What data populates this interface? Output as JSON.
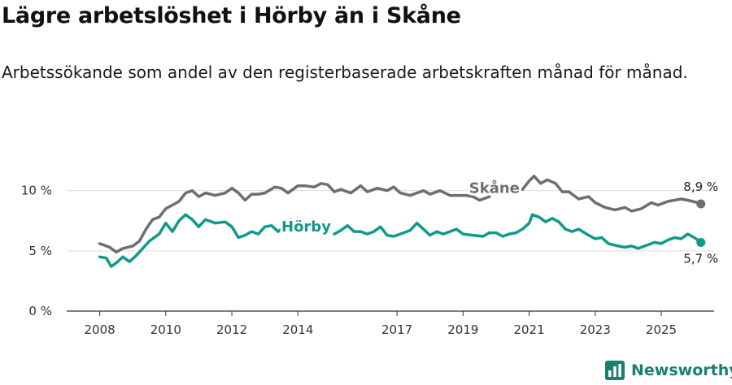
{
  "title": "Lägre arbetslöshet i Hörby än i Skåne",
  "subtitle": "Arbetssökande som andel av den registerbaserade arbetskraften månad för månad.",
  "brand": "Newsworthy",
  "colors": {
    "skane": "#6e6d72",
    "horby": "#11998a",
    "grid": "#dddddd",
    "axis": "#333333",
    "brand": "#1a7f6f"
  },
  "chart_data": {
    "type": "line",
    "title": "Lägre arbetslöshet i Hörby än i Skåne",
    "xlabel": "",
    "ylabel": "",
    "x_range": [
      2008,
      2026.2
    ],
    "ylim": [
      0,
      12
    ],
    "yticks": [
      0,
      5,
      10
    ],
    "ytick_labels": [
      "0 %",
      "5 %",
      "10 %"
    ],
    "xticks": [
      2008,
      2010,
      2012,
      2014,
      2017,
      2019,
      2021,
      2023,
      2025
    ],
    "xtick_labels": [
      "2008",
      "2010",
      "2012",
      "2014",
      "2017",
      "2019",
      "2021",
      "2023",
      "2025"
    ],
    "grid": true,
    "series": [
      {
        "name": "Skåne",
        "color": "#6e6d72",
        "end_label": "8,9 %",
        "segments": [
          [
            [
              2008.0,
              5.6
            ],
            [
              2008.3,
              5.3
            ],
            [
              2008.5,
              4.9
            ],
            [
              2008.7,
              5.2
            ],
            [
              2009.0,
              5.4
            ],
            [
              2009.2,
              5.8
            ],
            [
              2009.4,
              6.8
            ],
            [
              2009.6,
              7.6
            ],
            [
              2009.8,
              7.8
            ],
            [
              2010.0,
              8.5
            ],
            [
              2010.2,
              8.8
            ],
            [
              2010.4,
              9.1
            ],
            [
              2010.6,
              9.8
            ],
            [
              2010.8,
              10.0
            ],
            [
              2011.0,
              9.5
            ],
            [
              2011.2,
              9.8
            ],
            [
              2011.5,
              9.6
            ],
            [
              2011.8,
              9.8
            ],
            [
              2012.0,
              10.2
            ],
            [
              2012.2,
              9.8
            ],
            [
              2012.4,
              9.2
            ],
            [
              2012.6,
              9.7
            ],
            [
              2012.8,
              9.7
            ],
            [
              2013.0,
              9.8
            ],
            [
              2013.3,
              10.3
            ],
            [
              2013.5,
              10.2
            ],
            [
              2013.7,
              9.8
            ],
            [
              2014.0,
              10.4
            ],
            [
              2014.2,
              10.4
            ],
            [
              2014.5,
              10.3
            ],
            [
              2014.7,
              10.6
            ],
            [
              2014.9,
              10.5
            ],
            [
              2015.1,
              9.9
            ],
            [
              2015.3,
              10.1
            ],
            [
              2015.6,
              9.8
            ],
            [
              2015.9,
              10.4
            ],
            [
              2016.1,
              9.9
            ],
            [
              2016.4,
              10.2
            ],
            [
              2016.7,
              10.0
            ],
            [
              2016.9,
              10.3
            ],
            [
              2017.1,
              9.8
            ],
            [
              2017.4,
              9.6
            ],
            [
              2017.6,
              9.8
            ],
            [
              2017.8,
              10.0
            ],
            [
              2018.0,
              9.7
            ],
            [
              2018.3,
              10.0
            ],
            [
              2018.6,
              9.6
            ],
            [
              2018.9,
              9.6
            ],
            [
              2019.1,
              9.6
            ],
            [
              2019.3,
              9.5
            ],
            [
              2019.5,
              9.2
            ],
            [
              2019.7,
              9.4
            ],
            [
              2019.8,
              9.5
            ]
          ],
          [
            [
              2020.8,
              10.1
            ],
            [
              2021.0,
              10.8
            ],
            [
              2021.15,
              11.2
            ],
            [
              2021.35,
              10.6
            ],
            [
              2021.55,
              10.9
            ],
            [
              2021.8,
              10.6
            ],
            [
              2022.0,
              9.9
            ],
            [
              2022.2,
              9.9
            ],
            [
              2022.5,
              9.3
            ],
            [
              2022.8,
              9.5
            ],
            [
              2023.0,
              9.0
            ],
            [
              2023.3,
              8.6
            ],
            [
              2023.6,
              8.4
            ],
            [
              2023.9,
              8.6
            ],
            [
              2024.1,
              8.3
            ],
            [
              2024.4,
              8.5
            ],
            [
              2024.7,
              9.0
            ],
            [
              2024.9,
              8.8
            ],
            [
              2025.2,
              9.1
            ],
            [
              2025.4,
              9.2
            ],
            [
              2025.6,
              9.3
            ],
            [
              2025.8,
              9.2
            ],
            [
              2026.1,
              9.0
            ],
            [
              2026.2,
              8.9
            ]
          ]
        ]
      },
      {
        "name": "Hörby",
        "color": "#11998a",
        "end_label": "5,7 %",
        "segments": [
          [
            [
              2008.0,
              4.5
            ],
            [
              2008.2,
              4.4
            ],
            [
              2008.35,
              3.7
            ],
            [
              2008.5,
              4.0
            ],
            [
              2008.7,
              4.5
            ],
            [
              2008.9,
              4.1
            ],
            [
              2009.1,
              4.6
            ],
            [
              2009.3,
              5.2
            ],
            [
              2009.5,
              5.8
            ],
            [
              2009.8,
              6.4
            ],
            [
              2010.0,
              7.3
            ],
            [
              2010.2,
              6.6
            ],
            [
              2010.4,
              7.5
            ],
            [
              2010.6,
              8.0
            ],
            [
              2010.8,
              7.6
            ],
            [
              2011.0,
              7.0
            ],
            [
              2011.2,
              7.6
            ],
            [
              2011.5,
              7.3
            ],
            [
              2011.8,
              7.4
            ],
            [
              2012.0,
              7.0
            ],
            [
              2012.2,
              6.1
            ],
            [
              2012.4,
              6.3
            ],
            [
              2012.6,
              6.6
            ],
            [
              2012.8,
              6.4
            ],
            [
              2013.0,
              7.0
            ],
            [
              2013.2,
              7.1
            ],
            [
              2013.4,
              6.6
            ],
            [
              2013.6,
              7.0
            ],
            [
              2013.8,
              7.6
            ],
            [
              2014.0,
              7.4
            ]
          ],
          [
            [
              2015.1,
              6.4
            ],
            [
              2015.3,
              6.7
            ],
            [
              2015.5,
              7.1
            ],
            [
              2015.7,
              6.6
            ],
            [
              2015.9,
              6.6
            ],
            [
              2016.1,
              6.4
            ],
            [
              2016.3,
              6.6
            ],
            [
              2016.5,
              7.0
            ],
            [
              2016.7,
              6.3
            ],
            [
              2016.9,
              6.2
            ],
            [
              2017.1,
              6.4
            ],
            [
              2017.4,
              6.7
            ],
            [
              2017.6,
              7.3
            ],
            [
              2017.8,
              6.8
            ],
            [
              2018.0,
              6.3
            ],
            [
              2018.2,
              6.6
            ],
            [
              2018.4,
              6.4
            ],
            [
              2018.6,
              6.6
            ],
            [
              2018.8,
              6.8
            ],
            [
              2019.0,
              6.4
            ],
            [
              2019.3,
              6.3
            ],
            [
              2019.6,
              6.2
            ],
            [
              2019.8,
              6.5
            ],
            [
              2020.0,
              6.5
            ],
            [
              2020.2,
              6.2
            ],
            [
              2020.4,
              6.4
            ],
            [
              2020.6,
              6.5
            ],
            [
              2020.8,
              6.8
            ],
            [
              2021.0,
              7.3
            ],
            [
              2021.1,
              8.0
            ],
            [
              2021.3,
              7.8
            ],
            [
              2021.5,
              7.4
            ],
            [
              2021.7,
              7.7
            ],
            [
              2021.9,
              7.4
            ],
            [
              2022.1,
              6.8
            ],
            [
              2022.3,
              6.6
            ],
            [
              2022.5,
              6.8
            ],
            [
              2022.8,
              6.3
            ],
            [
              2023.0,
              6.0
            ],
            [
              2023.2,
              6.1
            ],
            [
              2023.4,
              5.6
            ],
            [
              2023.7,
              5.4
            ],
            [
              2023.9,
              5.3
            ],
            [
              2024.1,
              5.4
            ],
            [
              2024.3,
              5.2
            ],
            [
              2024.6,
              5.5
            ],
            [
              2024.8,
              5.7
            ],
            [
              2025.0,
              5.6
            ],
            [
              2025.2,
              5.9
            ],
            [
              2025.4,
              6.1
            ],
            [
              2025.6,
              6.0
            ],
            [
              2025.8,
              6.4
            ],
            [
              2026.0,
              6.1
            ],
            [
              2026.2,
              5.7
            ]
          ]
        ]
      }
    ]
  }
}
